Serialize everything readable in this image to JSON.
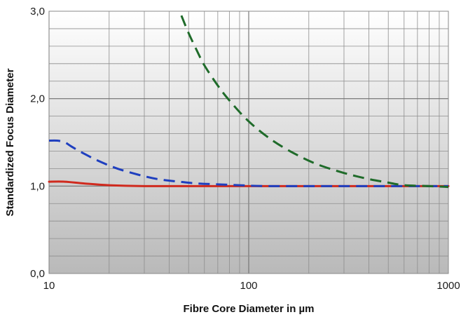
{
  "chart_data": {
    "type": "line",
    "title": "",
    "xlabel": "Fibre Core Diameter in µm",
    "ylabel": "Standardized Focus Diameter",
    "x_scale": "log",
    "xlim": [
      10,
      1000
    ],
    "ylim": [
      0,
      3
    ],
    "x_ticks": [
      10,
      100,
      1000
    ],
    "x_tick_labels": [
      "10",
      "100",
      "1000"
    ],
    "y_ticks": [
      0,
      1,
      2,
      3
    ],
    "y_tick_labels": [
      "0,0",
      "1,0",
      "2,0",
      "3,0"
    ],
    "grid": true,
    "legend": "none",
    "series": [
      {
        "color": "#1f3fbf",
        "dash": "dashed",
        "x": [
          10,
          11,
          12,
          13,
          15,
          18,
          22,
          28,
          35,
          45,
          55,
          70,
          90,
          120,
          200,
          400,
          1000
        ],
        "y": [
          1.52,
          1.52,
          1.5,
          1.45,
          1.37,
          1.28,
          1.2,
          1.13,
          1.08,
          1.05,
          1.03,
          1.02,
          1.01,
          1.0,
          1.0,
          1.0,
          1.0
        ]
      },
      {
        "color": "#d02a1e",
        "dash": "solid",
        "x": [
          10,
          12,
          15,
          20,
          30,
          50,
          100,
          300,
          1000
        ],
        "y": [
          1.05,
          1.05,
          1.03,
          1.01,
          1.0,
          1.0,
          1.0,
          1.0,
          1.0
        ]
      },
      {
        "color": "#1f6b2a",
        "dash": "dashed",
        "x": [
          46,
          50,
          55,
          60,
          70,
          80,
          100,
          130,
          170,
          220,
          300,
          400,
          500,
          600,
          800,
          1000
        ],
        "y": [
          2.95,
          2.75,
          2.55,
          2.38,
          2.15,
          1.98,
          1.74,
          1.53,
          1.37,
          1.25,
          1.15,
          1.08,
          1.04,
          1.01,
          1.0,
          0.99
        ]
      }
    ]
  }
}
